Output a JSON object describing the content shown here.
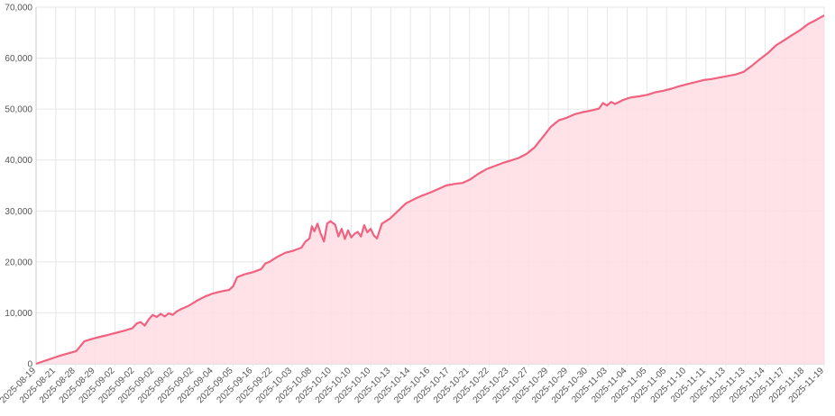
{
  "chart_data": {
    "type": "area",
    "title": "",
    "xlabel": "",
    "ylabel": "",
    "ylim": [
      0,
      70000
    ],
    "y_ticks": [
      "0",
      "10,000",
      "20,000",
      "30,000",
      "40,000",
      "50,000",
      "60,000",
      "70,000"
    ],
    "x_tick_labels": [
      "2025-08-19",
      "2025-08-21",
      "2025-08-28",
      "2025-08-29",
      "2025-09-02",
      "2025-09-02",
      "2025-09-02",
      "2025-09-02",
      "2025-09-02",
      "2025-09-04",
      "2025-09-05",
      "2025-09-16",
      "2025-09-22",
      "2025-10-03",
      "2025-10-08",
      "2025-10-10",
      "2025-10-10",
      "2025-10-10",
      "2025-10-13",
      "2025-10-14",
      "2025-10-16",
      "2025-10-17",
      "2025-10-21",
      "2025-10-22",
      "2025-10-23",
      "2025-10-27",
      "2025-10-29",
      "2025-10-29",
      "2025-10-30",
      "2025-11-03",
      "2025-11-04",
      "2025-11-05",
      "2025-11-05",
      "2025-11-10",
      "2025-11-11",
      "2025-11-13",
      "2025-11-13",
      "2025-11-14",
      "2025-11-17",
      "2025-11-18",
      "2025-11-19"
    ],
    "grid": true,
    "colors": {
      "line": "#f0627f",
      "fill": "#ffdde4"
    },
    "series": [
      {
        "values": [
          [
            0,
            0
          ],
          [
            3,
            1600
          ],
          [
            5,
            2500
          ],
          [
            6,
            4400
          ],
          [
            7,
            4900
          ],
          [
            8,
            5300
          ],
          [
            9,
            5700
          ],
          [
            10,
            6100
          ],
          [
            11,
            6500
          ],
          [
            12,
            7000
          ],
          [
            12.5,
            7900
          ],
          [
            13,
            8200
          ],
          [
            13.5,
            7500
          ],
          [
            14,
            8700
          ],
          [
            14.5,
            9600
          ],
          [
            15,
            9200
          ],
          [
            15.5,
            9800
          ],
          [
            16,
            9300
          ],
          [
            16.5,
            9900
          ],
          [
            17,
            9600
          ],
          [
            17.5,
            10300
          ],
          [
            18,
            10700
          ],
          [
            19,
            11400
          ],
          [
            20,
            12400
          ],
          [
            21,
            13200
          ],
          [
            22,
            13800
          ],
          [
            23,
            14200
          ],
          [
            24,
            14500
          ],
          [
            24.5,
            15200
          ],
          [
            25,
            17000
          ],
          [
            26,
            17600
          ],
          [
            27,
            18000
          ],
          [
            28,
            18600
          ],
          [
            28.5,
            19700
          ],
          [
            29,
            20000
          ],
          [
            30,
            21000
          ],
          [
            31,
            21800
          ],
          [
            32,
            22200
          ],
          [
            33,
            22800
          ],
          [
            33.5,
            24000
          ],
          [
            34,
            24600
          ],
          [
            34.3,
            27000
          ],
          [
            34.6,
            26000
          ],
          [
            35,
            27500
          ],
          [
            35.4,
            25500
          ],
          [
            35.8,
            24000
          ],
          [
            36.2,
            27500
          ],
          [
            36.6,
            28000
          ],
          [
            37.2,
            27300
          ],
          [
            37.6,
            25000
          ],
          [
            38,
            26500
          ],
          [
            38.4,
            24500
          ],
          [
            38.8,
            26200
          ],
          [
            39.2,
            24800
          ],
          [
            39.6,
            25500
          ],
          [
            40,
            25900
          ],
          [
            40.4,
            25000
          ],
          [
            40.8,
            27200
          ],
          [
            41.2,
            25800
          ],
          [
            41.6,
            26500
          ],
          [
            42,
            25200
          ],
          [
            42.4,
            24600
          ],
          [
            43,
            27500
          ],
          [
            44,
            28500
          ],
          [
            45,
            30000
          ],
          [
            46,
            31500
          ],
          [
            47,
            32300
          ],
          [
            48,
            33000
          ],
          [
            49,
            33600
          ],
          [
            50,
            34300
          ],
          [
            51,
            35000
          ],
          [
            52,
            35300
          ],
          [
            53,
            35500
          ],
          [
            54,
            36200
          ],
          [
            55,
            37300
          ],
          [
            56,
            38200
          ],
          [
            57,
            38800
          ],
          [
            58,
            39400
          ],
          [
            59,
            39900
          ],
          [
            60,
            40400
          ],
          [
            61,
            41200
          ],
          [
            62,
            42500
          ],
          [
            63,
            44500
          ],
          [
            64,
            46500
          ],
          [
            65,
            47800
          ],
          [
            66,
            48300
          ],
          [
            67,
            49000
          ],
          [
            68,
            49400
          ],
          [
            69,
            49700
          ],
          [
            70,
            50100
          ],
          [
            70.5,
            51200
          ],
          [
            71,
            50700
          ],
          [
            71.5,
            51400
          ],
          [
            72,
            51000
          ],
          [
            73,
            51800
          ],
          [
            74,
            52300
          ],
          [
            75,
            52500
          ],
          [
            76,
            52800
          ],
          [
            77,
            53300
          ],
          [
            78,
            53600
          ],
          [
            79,
            54000
          ],
          [
            80,
            54500
          ],
          [
            81,
            54900
          ],
          [
            82,
            55300
          ],
          [
            83,
            55700
          ],
          [
            84,
            55900
          ],
          [
            85,
            56200
          ],
          [
            86,
            56500
          ],
          [
            87,
            56800
          ],
          [
            88,
            57300
          ],
          [
            89,
            58500
          ],
          [
            90,
            59800
          ],
          [
            91,
            61000
          ],
          [
            92,
            62500
          ],
          [
            93,
            63500
          ],
          [
            94,
            64500
          ],
          [
            95,
            65500
          ],
          [
            96,
            66700
          ],
          [
            97,
            67500
          ],
          [
            98,
            68400
          ]
        ]
      }
    ]
  }
}
